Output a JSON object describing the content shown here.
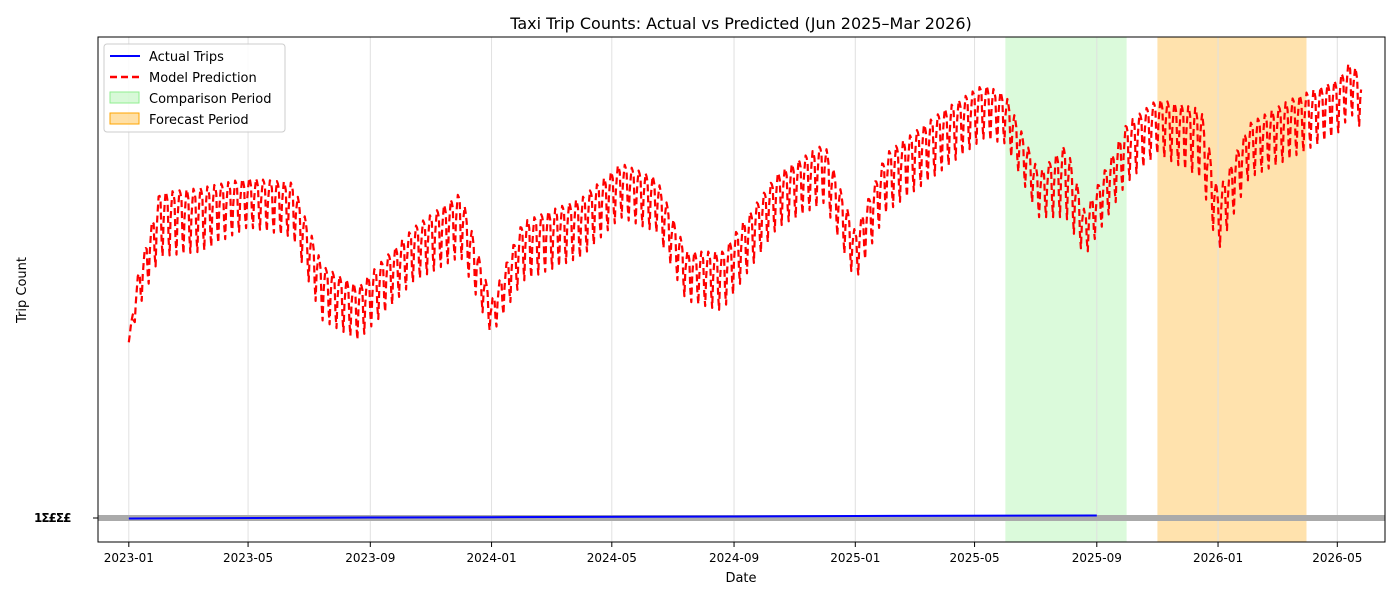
{
  "chart_data": {
    "type": "line",
    "title": "Taxi Trip Counts: Actual vs Predicted (Jun 2025–Mar 2026)",
    "xlabel": "Date",
    "ylabel": "Trip Count",
    "x_range": [
      "2022-12-01",
      "2026-06-18"
    ],
    "x_ticks": [
      "2023-01",
      "2023-05",
      "2023-09",
      "2024-01",
      "2024-05",
      "2024-09",
      "2025-01",
      "2025-05",
      "2025-09",
      "2026-01",
      "2026-05"
    ],
    "grid": "vertical",
    "legend_position": "top-left",
    "overlapping_ytick_text": "1Σ£Σ£",
    "bands": [
      {
        "name": "Comparison Period",
        "start": "2025-06-01",
        "end": "2025-10-01",
        "color": "#90ee90"
      },
      {
        "name": "Forecast Period",
        "start": "2025-11-01",
        "end": "2026-03-31",
        "color": "#ffa500"
      }
    ],
    "series": [
      {
        "name": "Actual Trips",
        "style": "solid",
        "color": "#0000ff",
        "points": [
          {
            "x": "2023-01-01",
            "y": 0.95
          },
          {
            "x": "2023-09-01",
            "y": 1.05
          },
          {
            "x": "2024-01-01",
            "y": 1.08
          },
          {
            "x": "2024-09-01",
            "y": 1.15
          },
          {
            "x": "2025-01-01",
            "y": 1.2
          },
          {
            "x": "2025-09-01",
            "y": 1.25
          }
        ]
      },
      {
        "name": "Model Prediction",
        "style": "dashed",
        "color": "#ff0000",
        "envelope": [
          {
            "x": "2023-01-01",
            "lo": 380,
            "hi": 390
          },
          {
            "x": "2023-01-10",
            "lo": 450,
            "hi": 520
          },
          {
            "x": "2023-02-01",
            "lo": 560,
            "hi": 690
          },
          {
            "x": "2023-03-15",
            "lo": 570,
            "hi": 700
          },
          {
            "x": "2023-05-01",
            "lo": 620,
            "hi": 720
          },
          {
            "x": "2023-06-15",
            "lo": 600,
            "hi": 710
          },
          {
            "x": "2023-07-15",
            "lo": 430,
            "hi": 540
          },
          {
            "x": "2023-08-20",
            "lo": 390,
            "hi": 500
          },
          {
            "x": "2023-10-15",
            "lo": 510,
            "hi": 620
          },
          {
            "x": "2023-12-01",
            "lo": 560,
            "hi": 690
          },
          {
            "x": "2024-01-01",
            "lo": 400,
            "hi": 470
          },
          {
            "x": "2024-02-01",
            "lo": 510,
            "hi": 630
          },
          {
            "x": "2024-04-01",
            "lo": 560,
            "hi": 680
          },
          {
            "x": "2024-05-10",
            "lo": 640,
            "hi": 750
          },
          {
            "x": "2024-06-15",
            "lo": 610,
            "hi": 720
          },
          {
            "x": "2024-07-15",
            "lo": 470,
            "hi": 570
          },
          {
            "x": "2024-08-20",
            "lo": 450,
            "hi": 570
          },
          {
            "x": "2024-10-15",
            "lo": 620,
            "hi": 730
          },
          {
            "x": "2024-12-01",
            "lo": 670,
            "hi": 790
          },
          {
            "x": "2025-01-01",
            "lo": 510,
            "hi": 610
          },
          {
            "x": "2025-02-01",
            "lo": 650,
            "hi": 770
          },
          {
            "x": "2025-04-01",
            "lo": 740,
            "hi": 860
          },
          {
            "x": "2025-05-10",
            "lo": 800,
            "hi": 910
          },
          {
            "x": "2025-06-01",
            "lo": 790,
            "hi": 890
          },
          {
            "x": "2025-07-05",
            "lo": 640,
            "hi": 730
          },
          {
            "x": "2025-08-01",
            "lo": 640,
            "hi": 790
          },
          {
            "x": "2025-08-20",
            "lo": 560,
            "hi": 650
          },
          {
            "x": "2025-10-01",
            "lo": 710,
            "hi": 830
          },
          {
            "x": "2025-11-01",
            "lo": 770,
            "hi": 880
          },
          {
            "x": "2025-12-15",
            "lo": 720,
            "hi": 860
          },
          {
            "x": "2026-01-01",
            "lo": 570,
            "hi": 690
          },
          {
            "x": "2026-02-01",
            "lo": 720,
            "hi": 830
          },
          {
            "x": "2026-03-15",
            "lo": 760,
            "hi": 880
          },
          {
            "x": "2026-05-01",
            "lo": 810,
            "hi": 920
          },
          {
            "x": "2026-05-15",
            "lo": 850,
            "hi": 960
          },
          {
            "x": "2026-05-25",
            "lo": 820,
            "hi": 920
          }
        ]
      }
    ]
  },
  "colors": {
    "actual": "#0000ff",
    "prediction": "#ff0000",
    "comparison": "#90ee90",
    "forecast": "#ffa500",
    "grid": "#e0e0e0",
    "hline": "#aaaaaa"
  }
}
